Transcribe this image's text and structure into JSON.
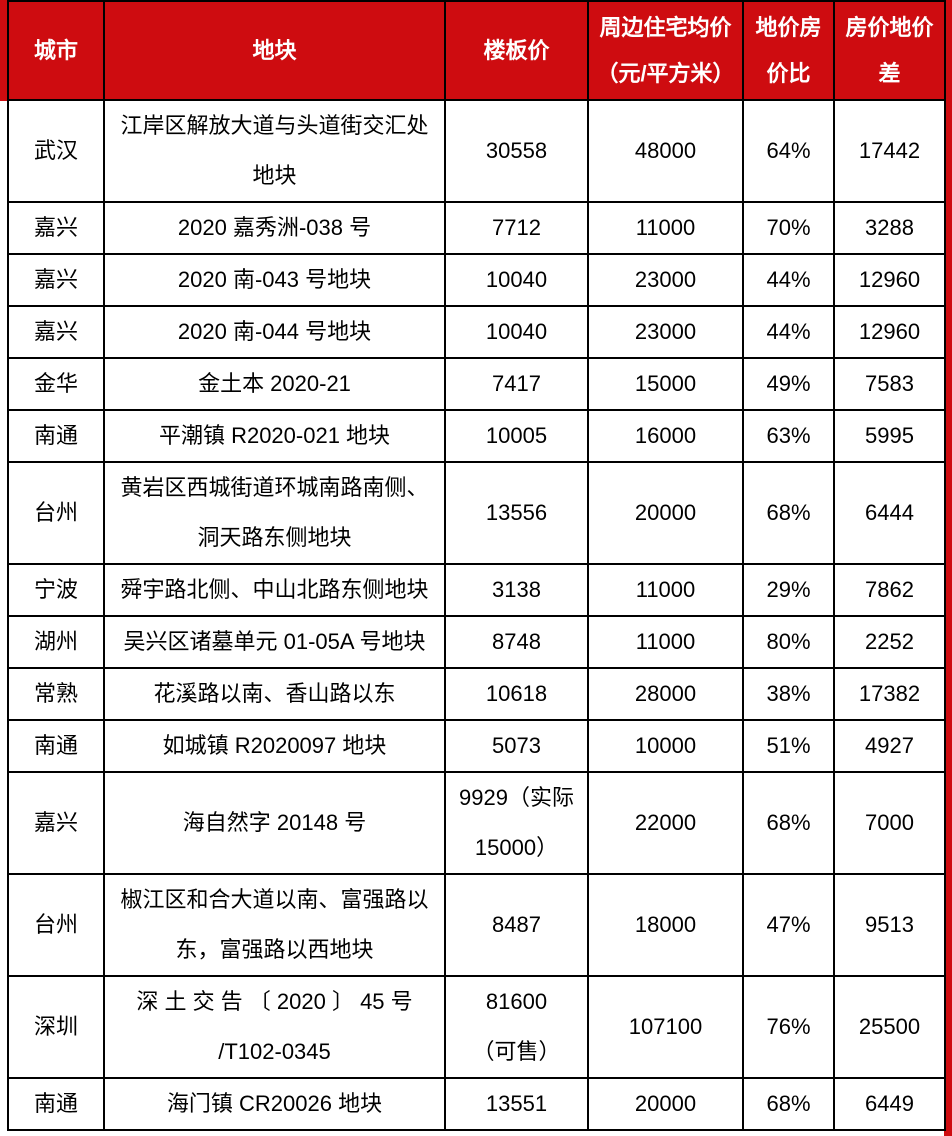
{
  "colors": {
    "accent_red": "#ce0c10",
    "border": "#000000",
    "header_text": "#ffffff",
    "body_text": "#000000",
    "background": "#ffffff"
  },
  "table": {
    "columns": [
      {
        "key": "city",
        "label": "城市"
      },
      {
        "key": "parcel",
        "label": "地块"
      },
      {
        "key": "floor_price",
        "label": "楼板价"
      },
      {
        "key": "avg_price",
        "label": "周边住宅均价\n（元/平方米）"
      },
      {
        "key": "ratio",
        "label": "地价房\n价比"
      },
      {
        "key": "diff",
        "label": "房价地价差"
      }
    ],
    "rows": [
      {
        "city": "武汉",
        "parcel": "江岸区解放大道与头道街交汇处\n地块",
        "floor_price": "30558",
        "avg_price": "48000",
        "ratio": "64%",
        "diff": "17442",
        "tall": true
      },
      {
        "city": "嘉兴",
        "parcel": "2020 嘉秀洲-038 号",
        "floor_price": "7712",
        "avg_price": "11000",
        "ratio": "70%",
        "diff": "3288",
        "tall": false
      },
      {
        "city": "嘉兴",
        "parcel": "2020 南-043 号地块",
        "floor_price": "10040",
        "avg_price": "23000",
        "ratio": "44%",
        "diff": "12960",
        "tall": false
      },
      {
        "city": "嘉兴",
        "parcel": "2020 南-044 号地块",
        "floor_price": "10040",
        "avg_price": "23000",
        "ratio": "44%",
        "diff": "12960",
        "tall": false
      },
      {
        "city": "金华",
        "parcel": "金土本 2020-21",
        "floor_price": "7417",
        "avg_price": "15000",
        "ratio": "49%",
        "diff": "7583",
        "tall": false
      },
      {
        "city": "南通",
        "parcel": "平潮镇 R2020-021 地块",
        "floor_price": "10005",
        "avg_price": "16000",
        "ratio": "63%",
        "diff": "5995",
        "tall": false
      },
      {
        "city": "台州",
        "parcel": "黄岩区西城街道环城南路南侧、\n洞天路东侧地块",
        "floor_price": "13556",
        "avg_price": "20000",
        "ratio": "68%",
        "diff": "6444",
        "tall": true
      },
      {
        "city": "宁波",
        "parcel": "舜宇路北侧、中山北路东侧地块",
        "floor_price": "3138",
        "avg_price": "11000",
        "ratio": "29%",
        "diff": "7862",
        "tall": false
      },
      {
        "city": "湖州",
        "parcel": "吴兴区诸墓单元 01-05A 号地块",
        "floor_price": "8748",
        "avg_price": "11000",
        "ratio": "80%",
        "diff": "2252",
        "tall": false
      },
      {
        "city": "常熟",
        "parcel": "花溪路以南、香山路以东",
        "floor_price": "10618",
        "avg_price": "28000",
        "ratio": "38%",
        "diff": "17382",
        "tall": false
      },
      {
        "city": "南通",
        "parcel": "如城镇 R2020097 地块",
        "floor_price": "5073",
        "avg_price": "10000",
        "ratio": "51%",
        "diff": "4927",
        "tall": false
      },
      {
        "city": "嘉兴",
        "parcel": "海自然字 20148 号",
        "floor_price": "9929（实际\n15000）",
        "avg_price": "22000",
        "ratio": "68%",
        "diff": "7000",
        "tall": true
      },
      {
        "city": "台州",
        "parcel": "椒江区和合大道以南、富强路以\n东，富强路以西地块",
        "floor_price": "8487",
        "avg_price": "18000",
        "ratio": "47%",
        "diff": "9513",
        "tall": true
      },
      {
        "city": "深圳",
        "parcel": "深 土 交 告 〔 2020 〕 45 号\n/T102-0345",
        "floor_price": "81600\n（可售）",
        "avg_price": "107100",
        "ratio": "76%",
        "diff": "25500",
        "tall": true
      },
      {
        "city": "南通",
        "parcel": "海门镇 CR20026 地块",
        "floor_price": "13551",
        "avg_price": "20000",
        "ratio": "68%",
        "diff": "6449",
        "tall": false
      }
    ]
  },
  "chart_data": {
    "type": "table",
    "title": "",
    "columns": [
      "城市",
      "地块",
      "楼板价",
      "周边住宅均价（元/平方米）",
      "地价房价比",
      "房价地价差"
    ],
    "rows": [
      [
        "武汉",
        "江岸区解放大道与头道街交汇处地块",
        30558,
        48000,
        "64%",
        17442
      ],
      [
        "嘉兴",
        "2020 嘉秀洲-038 号",
        7712,
        11000,
        "70%",
        3288
      ],
      [
        "嘉兴",
        "2020 南-043 号地块",
        10040,
        23000,
        "44%",
        12960
      ],
      [
        "嘉兴",
        "2020 南-044 号地块",
        10040,
        23000,
        "44%",
        12960
      ],
      [
        "金华",
        "金土本 2020-21",
        7417,
        15000,
        "49%",
        7583
      ],
      [
        "南通",
        "平潮镇 R2020-021 地块",
        10005,
        16000,
        "63%",
        5995
      ],
      [
        "台州",
        "黄岩区西城街道环城南路南侧、洞天路东侧地块",
        13556,
        20000,
        "68%",
        6444
      ],
      [
        "宁波",
        "舜宇路北侧、中山北路东侧地块",
        3138,
        11000,
        "29%",
        7862
      ],
      [
        "湖州",
        "吴兴区诸墓单元 01-05A 号地块",
        8748,
        11000,
        "80%",
        2252
      ],
      [
        "常熟",
        "花溪路以南、香山路以东",
        10618,
        28000,
        "38%",
        17382
      ],
      [
        "南通",
        "如城镇 R2020097 地块",
        5073,
        10000,
        "51%",
        4927
      ],
      [
        "嘉兴",
        "海自然字 20148 号",
        "9929（实际 15000）",
        22000,
        "68%",
        7000
      ],
      [
        "台州",
        "椒江区和合大道以南、富强路以东，富强路以西地块",
        8487,
        18000,
        "47%",
        9513
      ],
      [
        "深圳",
        "深土交告〔2020〕45 号/T102-0345",
        "81600（可售）",
        107100,
        "76%",
        25500
      ],
      [
        "南通",
        "海门镇 CR20026 地块",
        13551,
        20000,
        "68%",
        6449
      ]
    ]
  }
}
